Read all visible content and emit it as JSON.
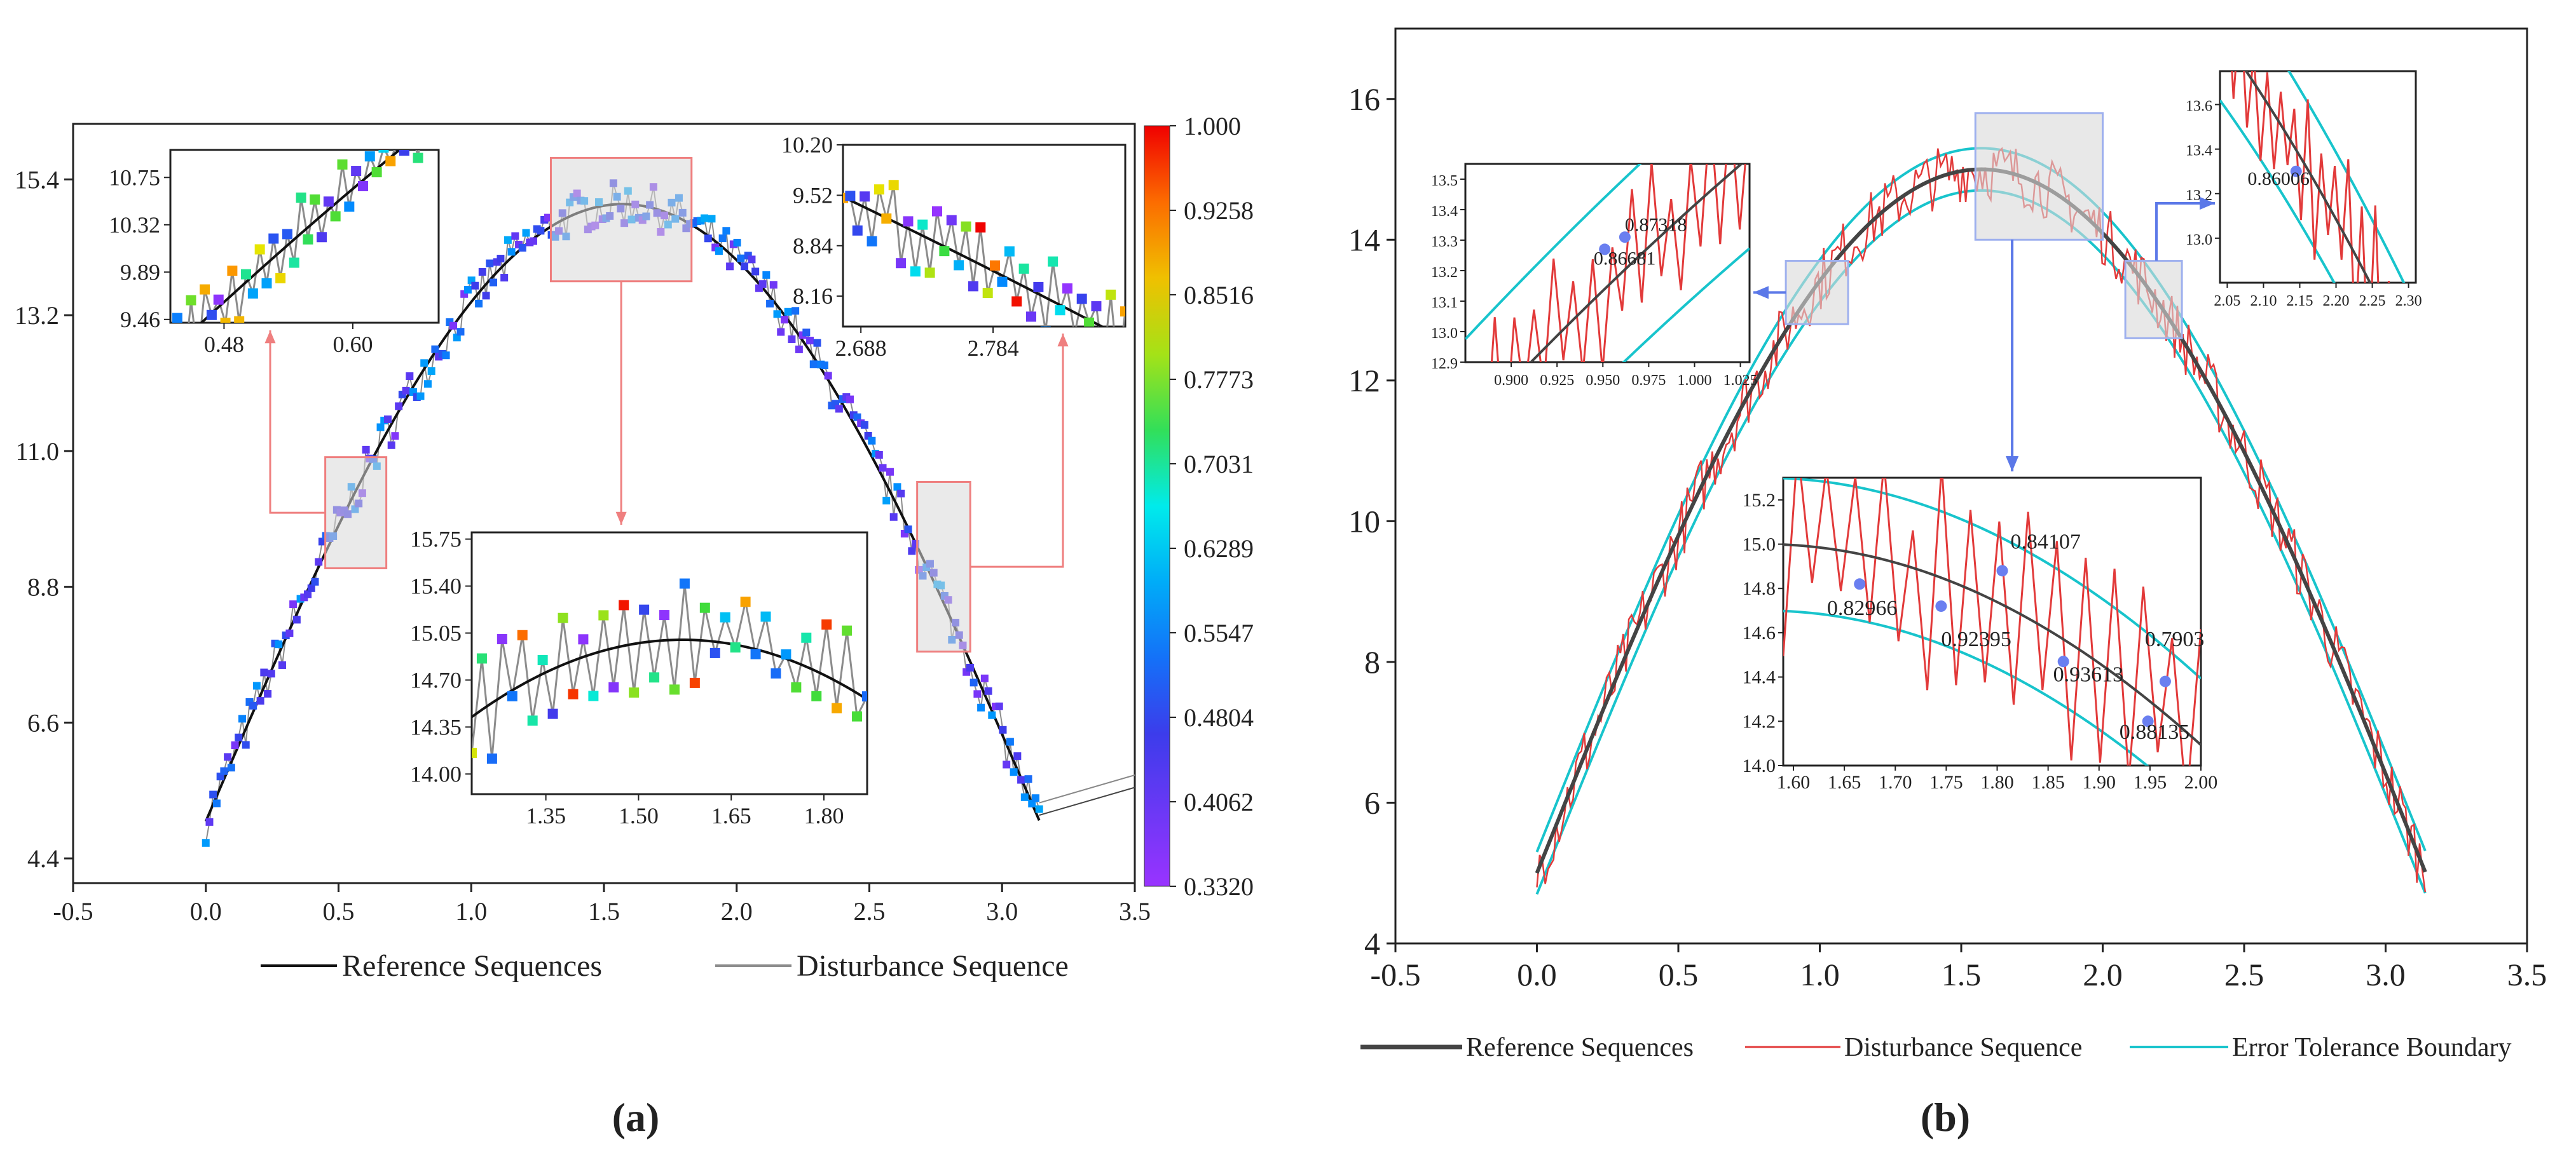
{
  "panel_labels": [
    "(a)",
    "(b)"
  ],
  "colors": {
    "reference": "#111111",
    "disturbance_a": "#8c8c8c",
    "disturbance_b": "#e23a3a",
    "boundary": "#18c4cc",
    "callout_a": "#ef7f7f",
    "callout_b": "#5b78e8",
    "highlight_box": "#d9d9d9"
  },
  "chart_data": [
    {
      "panel": "(a)",
      "type": "scatter",
      "title": "",
      "xlabel": "",
      "ylabel": "",
      "xlim": [
        -0.5,
        3.5
      ],
      "ylim": [
        4.0,
        16.3
      ],
      "x_ticks": [
        "-0.5",
        "0.0",
        "0.5",
        "1.0",
        "1.5",
        "2.0",
        "2.5",
        "3.0",
        "3.5"
      ],
      "y_ticks": [
        "4.4",
        "6.6",
        "8.8",
        "11.0",
        "13.2",
        "15.4"
      ],
      "series": [
        {
          "name": "Reference Sequences",
          "kind": "line",
          "function": "5 + 10*sin(x)",
          "x_range": [
            0,
            3.14
          ]
        },
        {
          "name": "Disturbance Sequence",
          "kind": "line+markers",
          "noise": 0.35,
          "x_range": [
            0,
            3.14
          ],
          "points": 230
        }
      ],
      "colorbar": {
        "min": 0.332,
        "max": 1.0,
        "ticks": [
          "1.000",
          "0.9258",
          "0.8516",
          "0.7773",
          "0.7031",
          "0.6289",
          "0.5547",
          "0.4804",
          "0.4062",
          "0.3320"
        ]
      },
      "highlight_regions": [
        {
          "x": [
            0.45,
            0.68
          ],
          "y": [
            9.1,
            10.9
          ]
        },
        {
          "x": [
            1.3,
            1.83
          ],
          "y": [
            13.75,
            15.75
          ]
        },
        {
          "x": [
            2.68,
            2.88
          ],
          "y": [
            7.75,
            10.5
          ]
        }
      ],
      "insets": [
        {
          "xlim": [
            0.43,
            0.68
          ],
          "ylim": [
            9.43,
            11.0
          ],
          "x_ticks": [
            "0.48",
            "0.60"
          ],
          "x_tick_values": [
            0.48,
            0.6
          ],
          "y_ticks": [
            "9.46",
            "9.89",
            "10.32",
            "10.75"
          ],
          "y_tick_values": [
            9.46,
            9.89,
            10.32,
            10.75
          ]
        },
        {
          "xlim": [
            1.23,
            1.87
          ],
          "ylim": [
            13.85,
            15.8
          ],
          "x_ticks": [
            "1.35",
            "1.50",
            "1.65",
            "1.80"
          ],
          "x_tick_values": [
            1.35,
            1.5,
            1.65,
            1.8
          ],
          "y_ticks": [
            "14.00",
            "14.35",
            "14.70",
            "15.05",
            "15.40",
            "15.75"
          ],
          "y_tick_values": [
            14.0,
            14.35,
            14.7,
            15.05,
            15.4,
            15.75
          ]
        },
        {
          "xlim": [
            2.675,
            2.88
          ],
          "ylim": [
            7.75,
            10.2
          ],
          "x_ticks": [
            "2.688",
            "2.784"
          ],
          "x_tick_values": [
            2.688,
            2.784
          ],
          "y_ticks": [
            "8.16",
            "8.84",
            "9.52",
            "10.20"
          ],
          "y_tick_values": [
            8.16,
            8.84,
            9.52,
            10.2
          ]
        }
      ],
      "legend": {
        "placement": "bottom",
        "entries": [
          "Reference Sequences",
          "Disturbance Sequence"
        ]
      }
    },
    {
      "panel": "(b)",
      "type": "line",
      "title": "",
      "xlabel": "",
      "ylabel": "",
      "xlim": [
        -0.5,
        3.5
      ],
      "ylim": [
        4,
        17
      ],
      "x_ticks": [
        "-0.5",
        "0.0",
        "0.5",
        "1.0",
        "1.5",
        "2.0",
        "2.5",
        "3.0",
        "3.5"
      ],
      "y_ticks": [
        "4",
        "6",
        "8",
        "10",
        "12",
        "14",
        "16"
      ],
      "series": [
        {
          "name": "Reference Sequences",
          "function": "5 + 10*sin(x)"
        },
        {
          "name": "Disturbance Sequence",
          "noise": 0.45,
          "points": 320
        },
        {
          "name": "Error Tolerance Boundary",
          "offset": [
            -0.3,
            0.3
          ]
        }
      ],
      "highlight_regions": [
        {
          "x": [
            0.88,
            1.1
          ],
          "y": [
            12.8,
            13.7
          ]
        },
        {
          "x": [
            1.55,
            2.0
          ],
          "y": [
            14.0,
            15.8
          ]
        },
        {
          "x": [
            2.08,
            2.28
          ],
          "y": [
            12.6,
            13.7
          ]
        }
      ],
      "insets": [
        {
          "xlim": [
            0.875,
            1.03
          ],
          "ylim": [
            12.9,
            13.55
          ],
          "x_ticks": [
            "0.900",
            "0.925",
            "0.950",
            "0.975",
            "1.000",
            "1.025"
          ],
          "x_tick_values": [
            0.9,
            0.925,
            0.95,
            0.975,
            1.0,
            1.025
          ],
          "y_ticks": [
            "12.9",
            "13.0",
            "13.1",
            "13.2",
            "13.3",
            "13.4",
            "13.5"
          ],
          "y_tick_values": [
            12.9,
            13.0,
            13.1,
            13.2,
            13.3,
            13.4,
            13.5
          ],
          "labels": [
            {
              "text": "0.87318",
              "x": 0.962,
              "y": 13.33
            },
            {
              "text": "0.86681",
              "x": 0.945,
              "y": 13.22
            }
          ],
          "points": [
            {
              "x": 0.951,
              "y": 13.27
            },
            {
              "x": 0.962,
              "y": 13.31
            }
          ]
        },
        {
          "xlim": [
            1.59,
            2.0
          ],
          "ylim": [
            14.0,
            15.3
          ],
          "x_ticks": [
            "1.60",
            "1.65",
            "1.70",
            "1.75",
            "1.80",
            "1.85",
            "1.90",
            "1.95",
            "2.00"
          ],
          "x_tick_values": [
            1.6,
            1.65,
            1.7,
            1.75,
            1.8,
            1.85,
            1.9,
            1.95,
            2.0
          ],
          "y_ticks": [
            "14.0",
            "14.2",
            "14.4",
            "14.6",
            "14.8",
            "15.0",
            "15.2"
          ],
          "y_tick_values": [
            14.0,
            14.2,
            14.4,
            14.6,
            14.8,
            15.0,
            15.2
          ],
          "labels": [
            {
              "text": "0.84107",
              "x": 1.813,
              "y": 14.98
            },
            {
              "text": "0.82966",
              "x": 1.633,
              "y": 14.68
            },
            {
              "text": "0.92395",
              "x": 1.745,
              "y": 14.54
            },
            {
              "text": "0.7903",
              "x": 1.945,
              "y": 14.54
            },
            {
              "text": "0.93613",
              "x": 1.855,
              "y": 14.38
            },
            {
              "text": "0.88135",
              "x": 1.92,
              "y": 14.12
            }
          ],
          "points": [
            {
              "x": 1.665,
              "y": 14.82
            },
            {
              "x": 1.745,
              "y": 14.72
            },
            {
              "x": 1.805,
              "y": 14.88
            },
            {
              "x": 1.865,
              "y": 14.47
            },
            {
              "x": 1.948,
              "y": 14.2
            },
            {
              "x": 1.965,
              "y": 14.38
            }
          ]
        },
        {
          "xlim": [
            2.04,
            2.31
          ],
          "ylim": [
            12.8,
            13.75
          ],
          "x_ticks": [
            "2.05",
            "2.10",
            "2.15",
            "2.20",
            "2.25",
            "2.30"
          ],
          "x_tick_values": [
            2.05,
            2.1,
            2.15,
            2.2,
            2.25,
            2.3
          ],
          "y_ticks": [
            "13.0",
            "13.2",
            "13.4",
            "13.6"
          ],
          "y_tick_values": [
            13.0,
            13.2,
            13.4,
            13.6
          ],
          "labels": [
            {
              "text": "0.86006",
              "x": 2.078,
              "y": 13.24
            }
          ],
          "points": [
            {
              "x": 2.145,
              "y": 13.3
            }
          ]
        }
      ],
      "legend": {
        "placement": "bottom",
        "entries": [
          "Reference Sequences",
          "Disturbance Sequence",
          "Error Tolerance Boundary"
        ]
      }
    }
  ]
}
